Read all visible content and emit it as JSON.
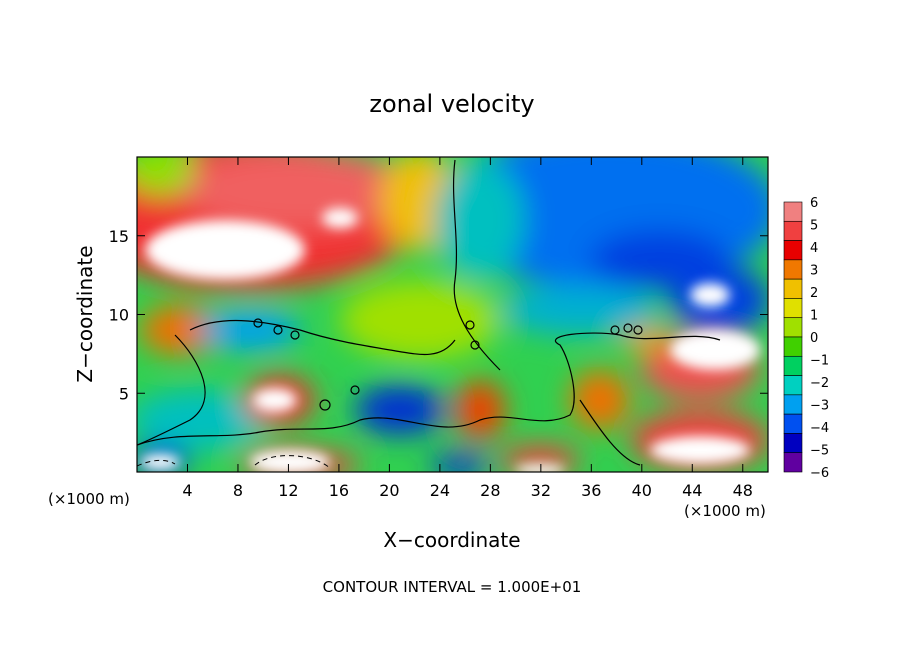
{
  "chart_data": {
    "type": "heatmap",
    "title": "zonal velocity",
    "xlabel": "X−coordinate",
    "ylabel": "Z−coordinate",
    "x_unit_left": "(×1000 m)",
    "x_unit_right": "(×1000 m)",
    "footer": "CONTOUR INTERVAL = 1.000E+01",
    "xlim": [
      0,
      50
    ],
    "ylim": [
      0,
      20
    ],
    "x_ticks": [
      4,
      8,
      12,
      16,
      20,
      24,
      28,
      32,
      36,
      40,
      44,
      48
    ],
    "y_ticks": [
      5,
      10,
      15
    ],
    "colorbar": {
      "levels": [
        6,
        5,
        4,
        3,
        2,
        1,
        0,
        -1,
        -2,
        -3,
        -4,
        -5,
        -6
      ],
      "labels": [
        "6",
        "5",
        "4",
        "3",
        "2",
        "1",
        "0",
        "−1",
        "−2",
        "−3",
        "−4",
        "−5",
        "−6"
      ],
      "colors": [
        "#f08080",
        "#f04040",
        "#e80000",
        "#f07800",
        "#f0c000",
        "#e0e000",
        "#a0e000",
        "#40d000",
        "#00d060",
        "#00d0c0",
        "#00a0f0",
        "#0050f0",
        "#0000c0",
        "#6000a0"
      ],
      "above_max_color": "#ffffff"
    }
  }
}
